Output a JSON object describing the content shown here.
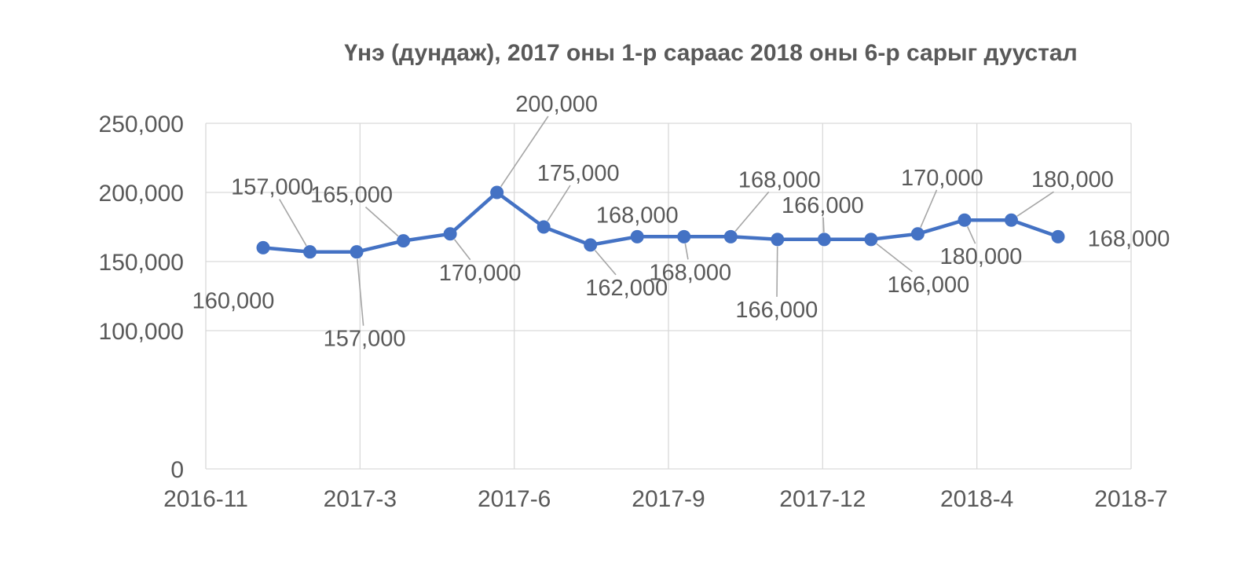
{
  "chart_data": {
    "type": "line",
    "title": "Үнэ (дундаж), 2017 оны 1-р сараас 2018 оны 6-р сарыг дуустал",
    "xlabel": "",
    "ylabel": "",
    "x_ticks": [
      "2016-11",
      "2017-3",
      "2017-6",
      "2017-9",
      "2017-12",
      "2018-4",
      "2018-7"
    ],
    "y_ticks": [
      "0",
      "100,000",
      "150,000",
      "200,000",
      "250,000"
    ],
    "ylim": [
      0,
      250000
    ],
    "grid": true,
    "legend": "none",
    "colors": {
      "line": "#4472c4",
      "grid": "#d9d9d9",
      "text": "#595959",
      "leader": "#a6a6a6"
    },
    "series": [
      {
        "values": [
          160000,
          157000,
          157000,
          165000,
          170000,
          200000,
          175000,
          162000,
          168000,
          168000,
          168000,
          166000,
          166000,
          166000,
          170000,
          180000,
          180000,
          168000
        ],
        "labels": [
          "160,000",
          "157,000",
          "157,000",
          "165,000",
          "170,000",
          "200,000",
          "175,000",
          "162,000",
          "168,000",
          "168,000",
          "168,000",
          "166,000",
          "166,000",
          "166,000",
          "170,000",
          "180,000",
          "180,000",
          "168,000"
        ]
      }
    ]
  }
}
